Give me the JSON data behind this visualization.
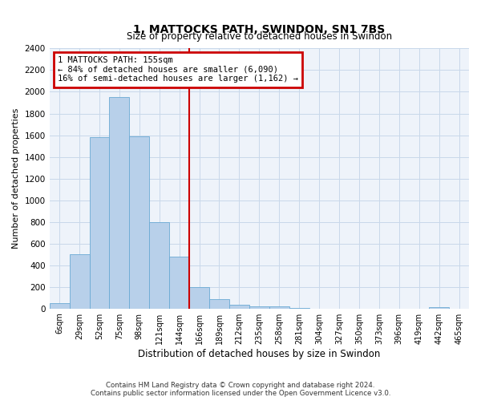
{
  "title": "1, MATTOCKS PATH, SWINDON, SN1 7BS",
  "subtitle": "Size of property relative to detached houses in Swindon",
  "xlabel": "Distribution of detached houses by size in Swindon",
  "ylabel": "Number of detached properties",
  "categories": [
    "6sqm",
    "29sqm",
    "52sqm",
    "75sqm",
    "98sqm",
    "121sqm",
    "144sqm",
    "166sqm",
    "189sqm",
    "212sqm",
    "235sqm",
    "258sqm",
    "281sqm",
    "304sqm",
    "327sqm",
    "350sqm",
    "373sqm",
    "396sqm",
    "419sqm",
    "442sqm",
    "465sqm"
  ],
  "values": [
    50,
    500,
    1580,
    1950,
    1590,
    800,
    480,
    195,
    85,
    35,
    20,
    20,
    5,
    0,
    0,
    0,
    0,
    0,
    0,
    15,
    0
  ],
  "bar_color": "#b8d0ea",
  "bar_edge_color": "#6aaad4",
  "grid_color": "#c8d8ea",
  "background_color": "#eef3fa",
  "annotation_text_line1": "1 MATTOCKS PATH: 155sqm",
  "annotation_text_line2": "← 84% of detached houses are smaller (6,090)",
  "annotation_text_line3": "16% of semi-detached houses are larger (1,162) →",
  "property_line_idx": 6.478,
  "ylim_min": 0,
  "ylim_max": 2400,
  "footnote_line1": "Contains HM Land Registry data © Crown copyright and database right 2024.",
  "footnote_line2": "Contains public sector information licensed under the Open Government Licence v3.0."
}
